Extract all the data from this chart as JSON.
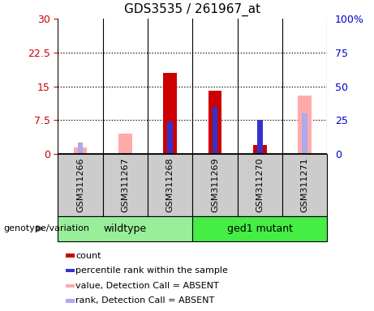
{
  "title": "GDS3535 / 261967_at",
  "samples": [
    "GSM311266",
    "GSM311267",
    "GSM311268",
    "GSM311269",
    "GSM311270",
    "GSM311271"
  ],
  "count_values": [
    0,
    0,
    18,
    14,
    2,
    0
  ],
  "percentile_values": [
    0,
    0,
    7.2,
    10.5,
    7.5,
    0
  ],
  "absent_value_values": [
    1.5,
    4.5,
    0,
    0,
    0,
    13
  ],
  "absent_rank_values": [
    2.5,
    0,
    0,
    0,
    0,
    9
  ],
  "count_color": "#cc0000",
  "percentile_color": "#3333cc",
  "absent_value_color": "#ffaaaa",
  "absent_rank_color": "#aaaaee",
  "bg_color": "#cccccc",
  "wildtype_color": "#99ee99",
  "mutant_color": "#44ee44",
  "left_label_color": "#cc0000",
  "right_label_color": "#0000cc",
  "legend_items": [
    {
      "label": "count",
      "color": "#cc0000"
    },
    {
      "label": "percentile rank within the sample",
      "color": "#3333cc"
    },
    {
      "label": "value, Detection Call = ABSENT",
      "color": "#ffaaaa"
    },
    {
      "label": "rank, Detection Call = ABSENT",
      "color": "#aaaaee"
    }
  ]
}
